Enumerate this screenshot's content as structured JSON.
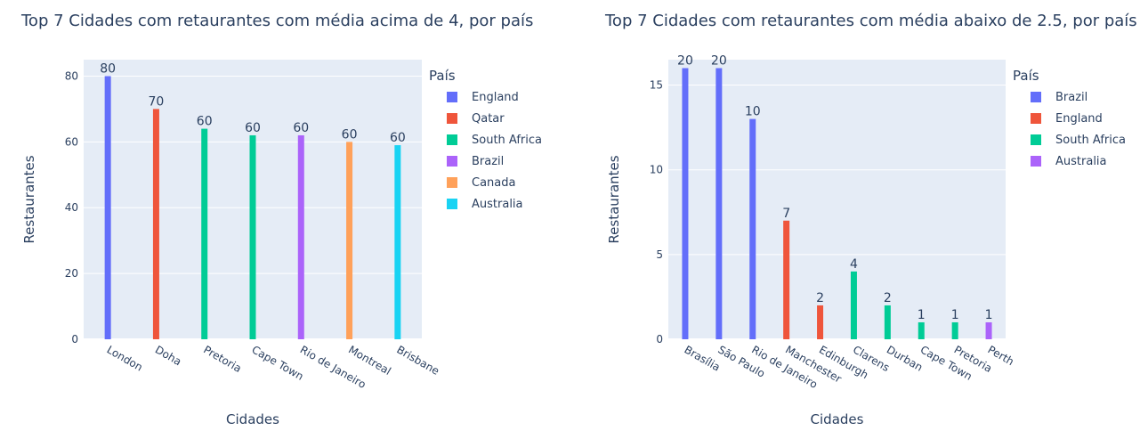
{
  "chart_data": [
    {
      "type": "bar",
      "title": "Top 7 Cidades com retaurantes com média acima de 4, por país",
      "xlabel": "Cidades",
      "ylabel": "Restaurantes",
      "legend_title": "País",
      "legend_position": "right",
      "ylim": [
        0,
        85
      ],
      "yticks": [
        0,
        20,
        40,
        60,
        80
      ],
      "grid": true,
      "categories": [
        "London",
        "Doha",
        "Pretoria",
        "Cape Town",
        "Rio de Janeiro",
        "Montreal",
        "Brisbane"
      ],
      "series": [
        {
          "name": "England",
          "color": "#636efa",
          "points": [
            {
              "category": "London",
              "value": 80,
              "label": "80"
            }
          ]
        },
        {
          "name": "Qatar",
          "color": "#ef553b",
          "points": [
            {
              "category": "Doha",
              "value": 70,
              "label": "70"
            }
          ]
        },
        {
          "name": "South Africa",
          "color": "#00cc96",
          "points": [
            {
              "category": "Pretoria",
              "value": 64,
              "label": "60"
            },
            {
              "category": "Cape Town",
              "value": 62,
              "label": "60"
            }
          ]
        },
        {
          "name": "Brazil",
          "color": "#ab63fa",
          "points": [
            {
              "category": "Rio de Janeiro",
              "value": 62,
              "label": "60"
            }
          ]
        },
        {
          "name": "Canada",
          "color": "#ffa15a",
          "points": [
            {
              "category": "Montreal",
              "value": 60,
              "label": "60"
            }
          ]
        },
        {
          "name": "Australia",
          "color": "#19d3f3",
          "points": [
            {
              "category": "Brisbane",
              "value": 59,
              "label": "60"
            }
          ]
        }
      ]
    },
    {
      "type": "bar",
      "title": "Top 7 Cidades com retaurantes com média abaixo de 2.5, por país",
      "xlabel": "Cidades",
      "ylabel": "Restaurantes",
      "legend_title": "País",
      "legend_position": "right",
      "ylim": [
        0,
        16.5
      ],
      "yticks": [
        0,
        5,
        10,
        15
      ],
      "grid": true,
      "categories": [
        "Brasília",
        "São Paulo",
        "Rio de Janeiro",
        "Manchester",
        "Edinburgh",
        "Clarens",
        "Durban",
        "Cape Town",
        "Pretoria",
        "Perth"
      ],
      "series": [
        {
          "name": "Brazil",
          "color": "#636efa",
          "points": [
            {
              "category": "Brasília",
              "value": 16,
              "label": "20"
            },
            {
              "category": "São Paulo",
              "value": 16,
              "label": "20"
            },
            {
              "category": "Rio de Janeiro",
              "value": 13,
              "label": "10"
            }
          ]
        },
        {
          "name": "England",
          "color": "#ef553b",
          "points": [
            {
              "category": "Manchester",
              "value": 7,
              "label": "7"
            },
            {
              "category": "Edinburgh",
              "value": 2,
              "label": "2"
            }
          ]
        },
        {
          "name": "South Africa",
          "color": "#00cc96",
          "points": [
            {
              "category": "Clarens",
              "value": 4,
              "label": "4"
            },
            {
              "category": "Durban",
              "value": 2,
              "label": "2"
            },
            {
              "category": "Cape Town",
              "value": 1,
              "label": "1"
            },
            {
              "category": "Pretoria",
              "value": 1,
              "label": "1"
            }
          ]
        },
        {
          "name": "Australia",
          "color": "#ab63fa",
          "points": [
            {
              "category": "Perth",
              "value": 1,
              "label": "1"
            }
          ]
        }
      ]
    }
  ]
}
